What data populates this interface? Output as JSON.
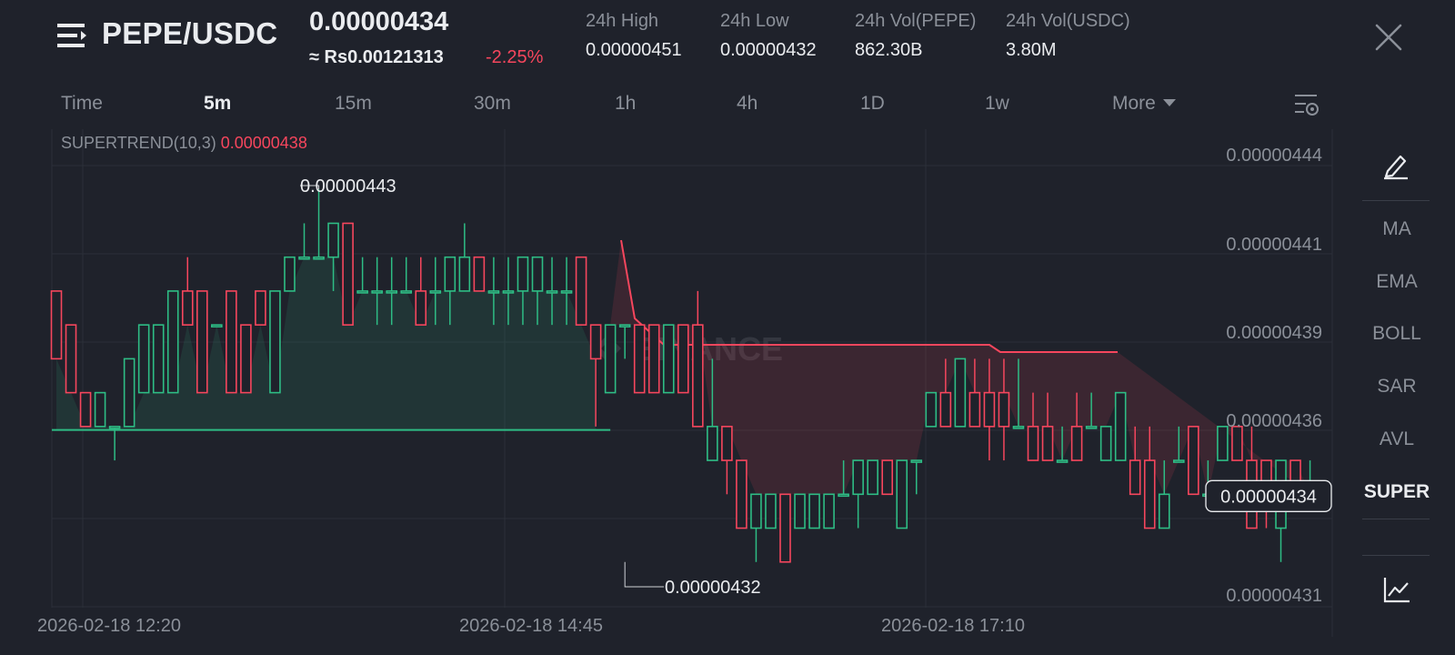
{
  "header": {
    "pair": "PEPE/USDC",
    "last_price": "0.00000434",
    "fiat_price": "≈ Rs0.00121313",
    "change": "-2.25%",
    "stats": [
      {
        "label": "24h High",
        "value": "0.00000451"
      },
      {
        "label": "24h Low",
        "value": "0.00000432"
      },
      {
        "label": "24h Vol(PEPE)",
        "value": "862.30B"
      },
      {
        "label": "24h Vol(USDC)",
        "value": "3.80M"
      }
    ]
  },
  "timeframes": [
    "Time",
    "5m",
    "15m",
    "30m",
    "1h",
    "4h",
    "1D",
    "1w",
    "More"
  ],
  "active_timeframe": "5m",
  "indicator": {
    "label": "SUPERTREND(10,3)",
    "value": "0.00000438"
  },
  "side_panel": {
    "items": [
      "MA",
      "EMA",
      "BOLL",
      "SAR",
      "AVL",
      "SUPER"
    ],
    "active": "SUPER"
  },
  "chart": {
    "watermark": "BINANCE",
    "price_ticks": [
      "0.00000444",
      "0.00000441",
      "0.00000439",
      "0.00000436",
      "0.00000431"
    ],
    "time_ticks": [
      "2026-02-18 12:20",
      "2026-02-18 14:45",
      "2026-02-18 17:10"
    ],
    "high_label": "0.00000443",
    "low_label": "0.00000432",
    "current_price_label": "0.00000434"
  },
  "colors": {
    "up": "#2ebd85",
    "down": "#f6465d",
    "background": "#1f222b",
    "text_muted": "#8b9099"
  }
}
